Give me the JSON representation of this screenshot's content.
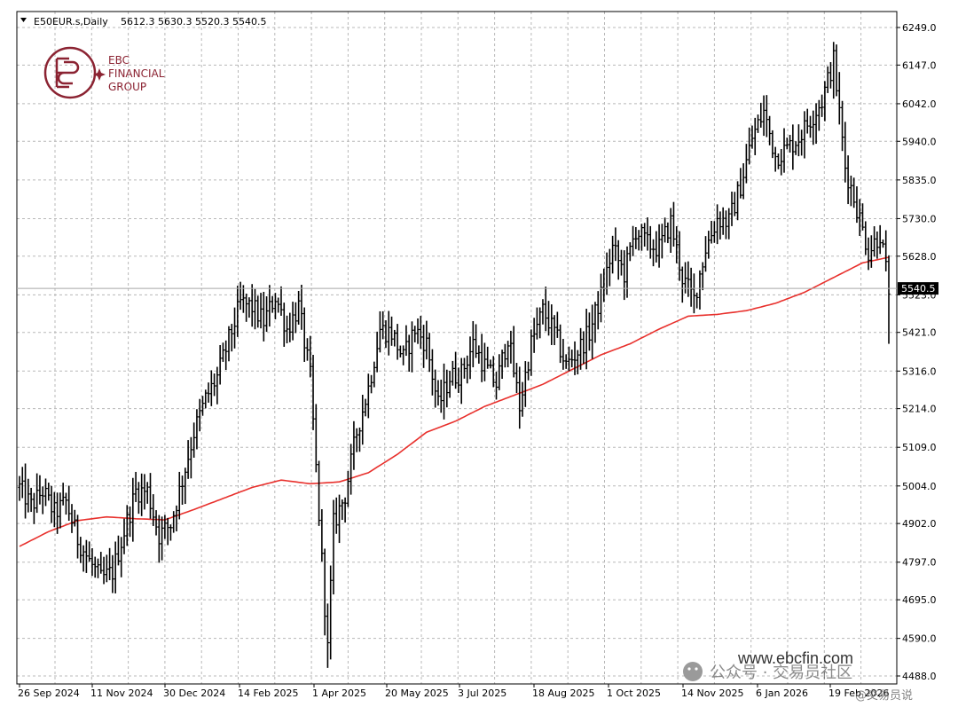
{
  "header": {
    "symbol": "E50EUR.s,Daily",
    "ohlc": "5612.3 5630.3 5520.3 5540.5"
  },
  "logo": {
    "line1": "EBC",
    "line2": "FINANCIAL",
    "line3": "GROUP"
  },
  "watermark": {
    "url": "www.ebcfin.com",
    "wechat": "公众号 · 交易员社区",
    "handle": "@交易员说"
  },
  "colors": {
    "bars": "#000000",
    "ma": "#e8302c",
    "grid": "#b8b8b8",
    "price_line": "#a8a8a8"
  },
  "current_price_label": "5540.5",
  "chart_data": {
    "type": "ohlc",
    "timeframe": "Daily",
    "y_ticks": [
      "6249.0",
      "6147.0",
      "6042.0",
      "5940.0",
      "5835.0",
      "5730.0",
      "5628.0",
      "5523.0",
      "5421.0",
      "5316.0",
      "5214.0",
      "5109.0",
      "5004.0",
      "4902.0",
      "4797.0",
      "4695.0",
      "4590.0",
      "4488.0"
    ],
    "x_ticks": [
      "26 Sep 2024",
      "11 Nov 2024",
      "30 Dec 2024",
      "14 Feb 2025",
      "1 Apr 2025",
      "20 May 2025",
      "3 Jul 2025",
      "18 Aug 2025",
      "1 Oct 2025",
      "14 Nov 2025",
      "6 Jan 2026",
      "19 Feb 2026"
    ],
    "ylim": [
      4470,
      6290
    ],
    "grid": true,
    "close_anchors": [
      [
        0,
        5000
      ],
      [
        4,
        4950
      ],
      [
        8,
        4990
      ],
      [
        12,
        4930
      ],
      [
        16,
        4960
      ],
      [
        20,
        4860
      ],
      [
        24,
        4800
      ],
      [
        28,
        4750
      ],
      [
        32,
        4770
      ],
      [
        36,
        4880
      ],
      [
        40,
        4990
      ],
      [
        44,
        4990
      ],
      [
        48,
        4870
      ],
      [
        52,
        4900
      ],
      [
        56,
        5020
      ],
      [
        60,
        5150
      ],
      [
        64,
        5240
      ],
      [
        68,
        5300
      ],
      [
        72,
        5400
      ],
      [
        76,
        5500
      ],
      [
        80,
        5490
      ],
      [
        84,
        5450
      ],
      [
        88,
        5520
      ],
      [
        92,
        5430
      ],
      [
        96,
        5490
      ],
      [
        100,
        5300
      ],
      [
        104,
        4800
      ],
      [
        106,
        4560
      ],
      [
        108,
        4900
      ],
      [
        112,
        4980
      ],
      [
        116,
        5150
      ],
      [
        120,
        5270
      ],
      [
        124,
        5430
      ],
      [
        128,
        5420
      ],
      [
        132,
        5350
      ],
      [
        136,
        5430
      ],
      [
        140,
        5390
      ],
      [
        144,
        5220
      ],
      [
        148,
        5300
      ],
      [
        152,
        5310
      ],
      [
        156,
        5390
      ],
      [
        160,
        5330
      ],
      [
        164,
        5280
      ],
      [
        168,
        5410
      ],
      [
        172,
        5220
      ],
      [
        176,
        5390
      ],
      [
        180,
        5480
      ],
      [
        184,
        5420
      ],
      [
        188,
        5330
      ],
      [
        192,
        5370
      ],
      [
        196,
        5420
      ],
      [
        200,
        5520
      ],
      [
        204,
        5650
      ],
      [
        208,
        5580
      ],
      [
        212,
        5700
      ],
      [
        216,
        5660
      ],
      [
        220,
        5650
      ],
      [
        224,
        5720
      ],
      [
        228,
        5570
      ],
      [
        232,
        5510
      ],
      [
        236,
        5650
      ],
      [
        240,
        5730
      ],
      [
        244,
        5720
      ],
      [
        248,
        5820
      ],
      [
        252,
        5950
      ],
      [
        256,
        6020
      ],
      [
        260,
        5900
      ],
      [
        264,
        5920
      ],
      [
        268,
        5950
      ],
      [
        272,
        6000
      ],
      [
        276,
        6050
      ],
      [
        280,
        6160
      ],
      [
        284,
        5870
      ],
      [
        288,
        5760
      ],
      [
        292,
        5640
      ],
      [
        296,
        5690
      ],
      [
        299,
        5540
      ]
    ],
    "ma_anchors": [
      [
        0,
        4840
      ],
      [
        10,
        4880
      ],
      [
        20,
        4910
      ],
      [
        30,
        4920
      ],
      [
        40,
        4915
      ],
      [
        50,
        4912
      ],
      [
        60,
        4940
      ],
      [
        70,
        4970
      ],
      [
        80,
        5000
      ],
      [
        90,
        5020
      ],
      [
        100,
        5010
      ],
      [
        110,
        5015
      ],
      [
        120,
        5040
      ],
      [
        130,
        5090
      ],
      [
        140,
        5150
      ],
      [
        150,
        5180
      ],
      [
        160,
        5220
      ],
      [
        170,
        5250
      ],
      [
        180,
        5280
      ],
      [
        190,
        5320
      ],
      [
        200,
        5360
      ],
      [
        210,
        5390
      ],
      [
        220,
        5430
      ],
      [
        230,
        5465
      ],
      [
        240,
        5470
      ],
      [
        250,
        5480
      ],
      [
        260,
        5500
      ],
      [
        270,
        5530
      ],
      [
        280,
        5570
      ],
      [
        290,
        5610
      ],
      [
        299,
        5625
      ]
    ],
    "min_low": 4510,
    "max_high": 6210
  }
}
